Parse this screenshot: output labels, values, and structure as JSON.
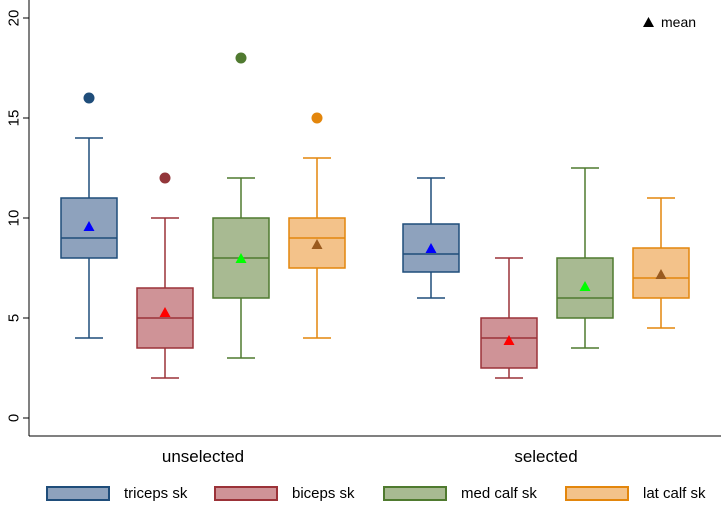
{
  "chart_data": {
    "type": "boxplot",
    "title": "",
    "xlabel": "",
    "ylabel": "",
    "ylim": [
      -1,
      21
    ],
    "yticks": [
      0,
      5,
      10,
      15,
      20
    ],
    "ytick_labels": [
      "0",
      "5",
      "10",
      "15",
      "20"
    ],
    "groups": [
      "unselected",
      "selected"
    ],
    "mean_legend": "mean",
    "series": [
      {
        "name": "triceps sk",
        "fill": "#8ea2bd",
        "stroke": "#1f4d7a",
        "mean_color": "#0000ff",
        "outlier_color": "#1f4d7a",
        "boxes": [
          {
            "group": "unselected",
            "whisker_low": 4,
            "q1": 8,
            "median": 9,
            "q3": 11,
            "whisker_high": 14,
            "mean": 9.6,
            "outliers": [
              16
            ]
          },
          {
            "group": "selected",
            "whisker_low": 6,
            "q1": 7.3,
            "median": 8.2,
            "q3": 9.7,
            "whisker_high": 12,
            "mean": 8.5,
            "outliers": []
          }
        ]
      },
      {
        "name": "biceps sk",
        "fill": "#cf9397",
        "stroke": "#9b3238",
        "mean_color": "#ff0000",
        "outlier_color": "#93363a",
        "boxes": [
          {
            "group": "unselected",
            "whisker_low": 2,
            "q1": 3.5,
            "median": 5,
            "q3": 6.5,
            "whisker_high": 10,
            "mean": 5.3,
            "outliers": [
              12
            ]
          },
          {
            "group": "selected",
            "whisker_low": 2,
            "q1": 2.5,
            "median": 4,
            "q3": 5,
            "whisker_high": 8,
            "mean": 3.9,
            "outliers": []
          }
        ]
      },
      {
        "name": "med calf sk",
        "fill": "#a8ba92",
        "stroke": "#4f7a2f",
        "mean_color": "#00ff00",
        "outlier_color": "#507a30",
        "boxes": [
          {
            "group": "unselected",
            "whisker_low": 3,
            "q1": 6,
            "median": 8,
            "q3": 10,
            "whisker_high": 12,
            "mean": 8,
            "outliers": [
              18
            ]
          },
          {
            "group": "selected",
            "whisker_low": 3.5,
            "q1": 5,
            "median": 6,
            "q3": 8,
            "whisker_high": 12.5,
            "mean": 6.6,
            "outliers": []
          }
        ]
      },
      {
        "name": "lat calf sk",
        "fill": "#f3c28a",
        "stroke": "#e3860c",
        "mean_color": "#9a5a1e",
        "outlier_color": "#e3860c",
        "boxes": [
          {
            "group": "unselected",
            "whisker_low": 4,
            "q1": 7.5,
            "median": 9,
            "q3": 10,
            "whisker_high": 13,
            "mean": 8.7,
            "outliers": [
              15
            ]
          },
          {
            "group": "selected",
            "whisker_low": 4.5,
            "q1": 6,
            "median": 7,
            "q3": 8.5,
            "whisker_high": 11,
            "mean": 7.2,
            "outliers": []
          }
        ]
      }
    ]
  }
}
